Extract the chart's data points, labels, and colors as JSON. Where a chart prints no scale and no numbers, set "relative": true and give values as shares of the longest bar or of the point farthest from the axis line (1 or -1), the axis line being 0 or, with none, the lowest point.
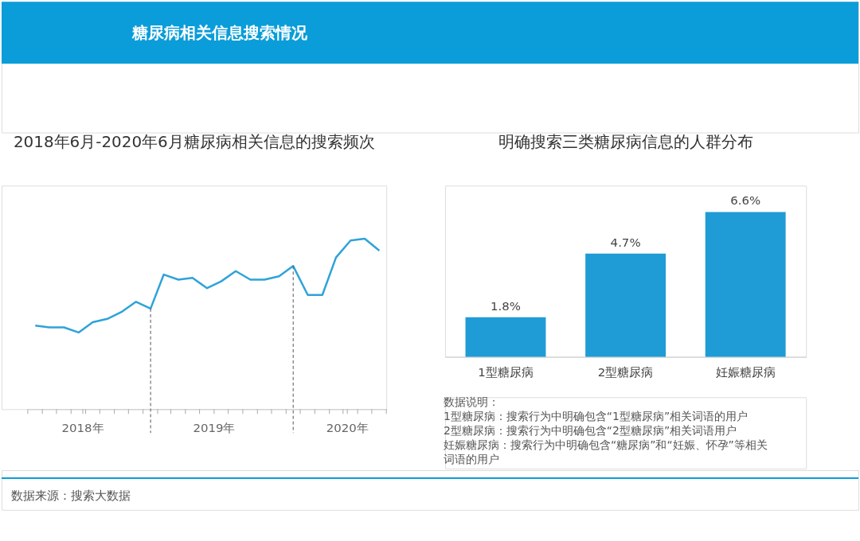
{
  "chart_data": [
    {
      "type": "line",
      "title": "2018年6月-2020年6月糖尿病相关信息的搜索频次",
      "relative": true,
      "marker": "none",
      "line_style": "solid",
      "grid": false,
      "x": [
        "2018-06-01",
        "2018-07-01",
        "2018-08-01",
        "2018-09-01",
        "2018-10-01",
        "2018-11-01",
        "2018-12-01",
        "2019-01-01",
        "2019-02-01",
        "2019-03-01",
        "2019-04-01",
        "2019-05-01",
        "2019-06-01",
        "2019-07-01",
        "2019-08-01",
        "2019-09-01",
        "2019-10-01",
        "2019-11-01",
        "2019-12-01",
        "2020-01-01",
        "2020-02-01",
        "2020-03-01",
        "2020-04-01",
        "2020-05-01",
        "2020-06-01"
      ],
      "xlim": [
        "2018-05-16",
        "2020-06-16"
      ],
      "xticks": [
        {
          "value": "2018-05-16",
          "label": null
        },
        {
          "value": "2018-06-16",
          "label": null
        },
        {
          "value": "2018-07-16",
          "label": null
        },
        {
          "value": "2018-08-16",
          "label": null
        },
        {
          "value": "2018-09-10",
          "label": "2018年"
        },
        {
          "value": "2018-09-16",
          "label": null
        },
        {
          "value": "2018-10-16",
          "label": null
        },
        {
          "value": "2018-11-16",
          "label": null
        },
        {
          "value": "2018-12-16",
          "label": null
        },
        {
          "value": "2019-01-16",
          "label": null
        },
        {
          "value": "2019-02-16",
          "label": null
        },
        {
          "value": "2019-03-16",
          "label": null
        },
        {
          "value": "2019-04-16",
          "label": null
        },
        {
          "value": "2019-05-16",
          "label": null
        },
        {
          "value": "2019-06-16",
          "label": "2019年"
        },
        {
          "value": "2019-07-16",
          "label": null
        },
        {
          "value": "2019-08-16",
          "label": null
        },
        {
          "value": "2019-09-16",
          "label": null
        },
        {
          "value": "2019-10-16",
          "label": null
        },
        {
          "value": "2019-11-16",
          "label": null
        },
        {
          "value": "2019-12-16",
          "label": null
        },
        {
          "value": "2020-01-16",
          "label": null
        },
        {
          "value": "2020-02-16",
          "label": null
        },
        {
          "value": "2020-03-16",
          "label": null
        },
        {
          "value": "2020-03-25",
          "label": "2020年"
        },
        {
          "value": "2020-04-16",
          "label": null
        },
        {
          "value": "2020-05-16",
          "label": null
        },
        {
          "value": "2020-06-16",
          "label": null
        }
      ],
      "series": [
        {
          "color": "#2ea3d9",
          "values": [
            0.49,
            0.48,
            0.48,
            0.45,
            0.51,
            0.53,
            0.57,
            0.63,
            0.59,
            0.79,
            0.76,
            0.77,
            0.71,
            0.75,
            0.81,
            0.76,
            0.76,
            0.78,
            0.84,
            0.67,
            0.67,
            0.89,
            0.99,
            1,
            0.93
          ]
        }
      ],
      "ref_lines": [
        {
          "axis": "x",
          "value": "2019-02-01",
          "line_style": "dashed",
          "color": "#555555"
        },
        {
          "axis": "x",
          "value": "2019-12-01",
          "line_style": "dashed",
          "color": "#555555"
        }
      ],
      "annotations": [
        "糖尿病相关信息搜索情况",
        "数据来源：搜索大数据"
      ]
    },
    {
      "type": "bar",
      "title": "明确搜索三类糖尿病信息的人群分布",
      "categories": [
        "1型糖尿病",
        "2型糖尿病",
        "妊娠糖尿病"
      ],
      "values": [
        1.8,
        4.7,
        6.6
      ],
      "value_labels": [
        "1.8%",
        "4.7%",
        "6.6%"
      ],
      "color": "#1f9bd5",
      "ylim": [
        0,
        7.8
      ],
      "tick_labels": "x",
      "annotations": [
        "数据说明：",
        "1型糖尿病：搜索行为中明确包含“1型糖尿病”相关词语的用户",
        "2型糖尿病：搜索行为中明确包含“2型糖尿病”相关词语用户",
        "妊娠糖尿病：搜索行为中明确包含“糖尿病”和“妊娠、怀孕”等相关词语的用户"
      ]
    }
  ]
}
